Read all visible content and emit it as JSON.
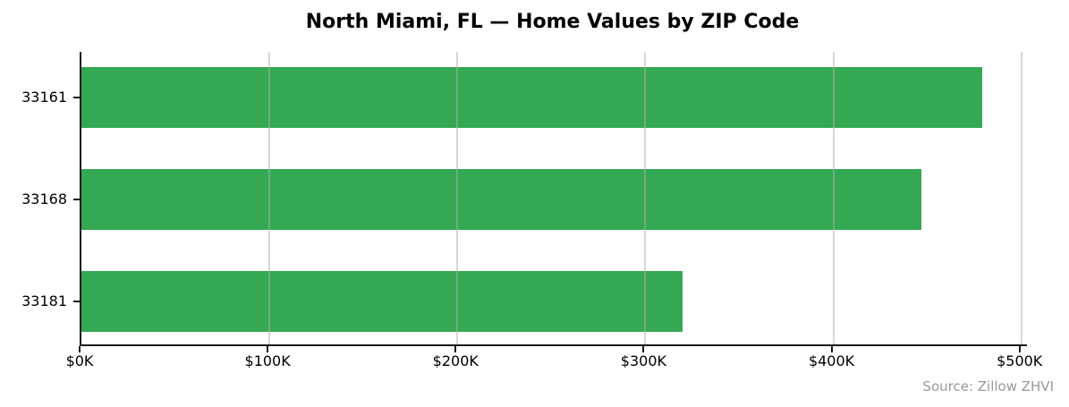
{
  "chart_data": {
    "type": "bar",
    "orientation": "horizontal",
    "title": "North Miami, FL — Home Values by ZIP Code",
    "source": "Source: Zillow ZHVI",
    "categories": [
      "33161",
      "33168",
      "33181"
    ],
    "values": [
      479000,
      447000,
      320000
    ],
    "xlabel": "",
    "ylabel": "",
    "xlim": [
      0,
      503000
    ],
    "xticks": [
      {
        "value": 0,
        "label": "$0K"
      },
      {
        "value": 100000,
        "label": "$100K"
      },
      {
        "value": 200000,
        "label": "$200K"
      },
      {
        "value": 300000,
        "label": "$300K"
      },
      {
        "value": 400000,
        "label": "$400K"
      },
      {
        "value": 500000,
        "label": "$500K"
      }
    ],
    "grid": "vertical-only",
    "legend": null,
    "colors": {
      "bar": "#34a853",
      "gridline": "rgba(176,176,176,0.5)",
      "axis": "#1a1a1a",
      "source_text": "#999999",
      "background": "#ffffff"
    }
  }
}
